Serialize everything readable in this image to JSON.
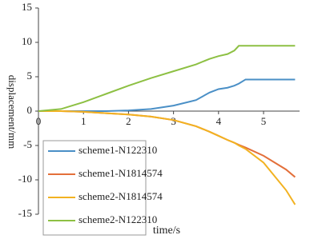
{
  "chart_data": {
    "type": "line",
    "xlabel": "time/s",
    "ylabel": "displacement/mm",
    "x": [
      0,
      0.5,
      1,
      1.5,
      2,
      2.5,
      3,
      3.5,
      3.8,
      4,
      4.2,
      4.35,
      4.45,
      4.6,
      5,
      5.5,
      5.7
    ],
    "series": [
      {
        "name": "scheme1-N122310",
        "color": "#4a8fc6",
        "values": [
          0,
          0,
          0,
          0,
          0.1,
          0.3,
          0.8,
          1.6,
          2.7,
          3.2,
          3.4,
          3.7,
          4.0,
          4.6,
          4.6,
          4.6,
          4.6
        ]
      },
      {
        "name": "scheme1-N1814574",
        "color": "#e36f3a",
        "values": [
          0,
          0,
          -0.1,
          -0.3,
          -0.5,
          -0.8,
          -1.3,
          -2.2,
          -3.0,
          -3.6,
          -4.2,
          -4.6,
          -4.9,
          -5.3,
          -6.5,
          -8.5,
          -9.6
        ]
      },
      {
        "name": "scheme2-N1814574",
        "color": "#f2b221",
        "values": [
          0,
          0,
          -0.1,
          -0.3,
          -0.5,
          -0.8,
          -1.3,
          -2.2,
          -3.0,
          -3.6,
          -4.2,
          -4.6,
          -5.0,
          -5.5,
          -7.5,
          -11.5,
          -13.6
        ]
      },
      {
        "name": "scheme2-N122310",
        "color": "#8dc043",
        "values": [
          0,
          0.3,
          1.3,
          2.5,
          3.7,
          4.8,
          5.8,
          6.8,
          7.6,
          8.0,
          8.3,
          8.8,
          9.5,
          9.5,
          9.5,
          9.5,
          9.5
        ]
      }
    ],
    "xlim": [
      0,
      5.8
    ],
    "xticks": [
      0,
      1,
      2,
      3,
      4,
      5
    ],
    "ylim": [
      -15,
      15
    ],
    "yticks": [
      -15,
      -10,
      -5,
      0,
      5,
      10,
      15
    ],
    "legend": "lower left",
    "grid": false
  }
}
